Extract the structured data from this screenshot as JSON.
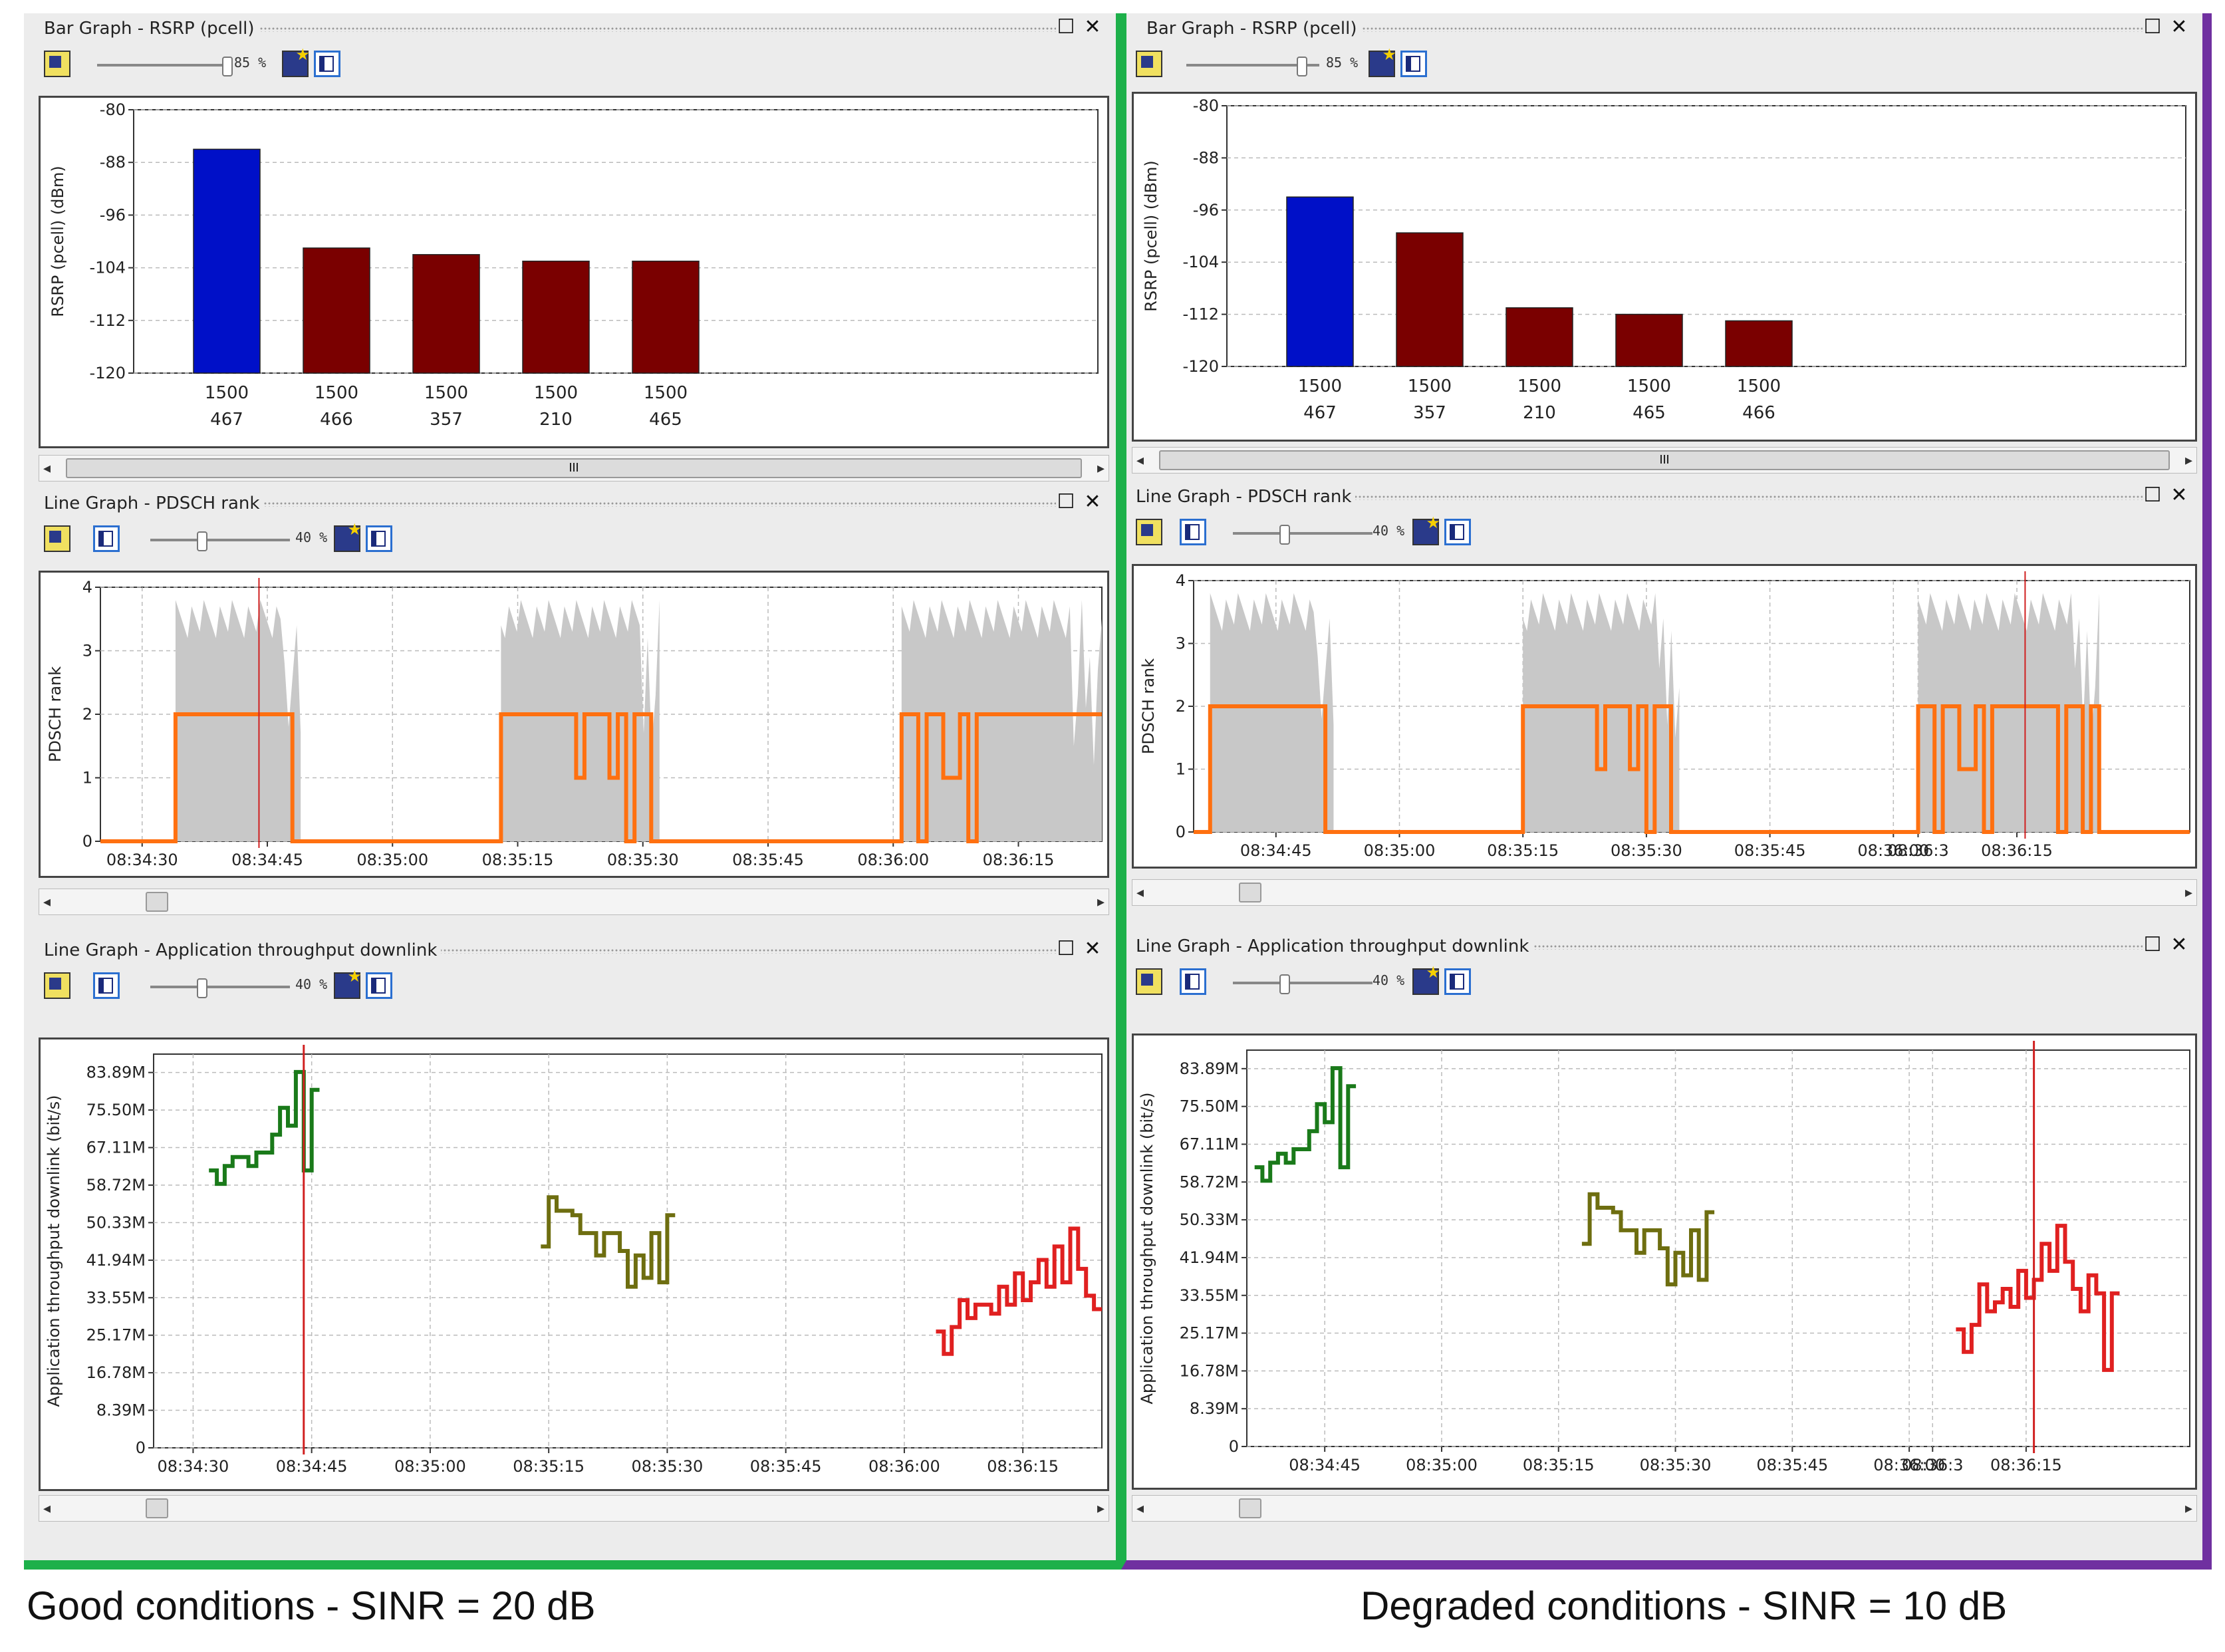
{
  "panels": {
    "bar": {
      "title": "Bar Graph - RSRP (pcell)",
      "zoom": "85 %",
      "zoom_level": 0.85
    },
    "rank": {
      "title": "Line Graph - PDSCH rank",
      "zoom": "40 %",
      "zoom_level": 0.4
    },
    "thr": {
      "title": "Line Graph - Application throughput downlink",
      "zoom": "40 %",
      "zoom_level": 0.4
    }
  },
  "window_controls": {
    "maximize": "☐",
    "close": "✕"
  },
  "scroll": {
    "left": "◂",
    "right": "▸",
    "grip": "III"
  },
  "captions": {
    "left": "Good conditions - SINR = 20 dB",
    "right": "Degraded conditions - SINR = 10 dB"
  },
  "colors": {
    "good_border": "#1db04a",
    "degraded_border": "#7030a0",
    "serving_bar": "#0010c8",
    "neighbor_bar": "#7a0000",
    "rank_line": "#ff7010",
    "rank_fill": "#c8c8c8",
    "cursor": "#d02020"
  },
  "chart_data": [
    {
      "id": "left-bar",
      "type": "bar",
      "ylabel": "RSRP (pcell) (dBm)",
      "ylim": [
        -120,
        -80
      ],
      "yticks": [
        -80,
        -88,
        -96,
        -104,
        -112,
        -120
      ],
      "categories": [
        [
          "1500",
          "467"
        ],
        [
          "1500",
          "466"
        ],
        [
          "1500",
          "357"
        ],
        [
          "1500",
          "210"
        ],
        [
          "1500",
          "465"
        ]
      ],
      "values": [
        -86,
        -101,
        -102,
        -103,
        -103
      ],
      "colors": [
        "#0010c8",
        "#7a0000",
        "#7a0000",
        "#7a0000",
        "#7a0000"
      ]
    },
    {
      "id": "right-bar",
      "type": "bar",
      "ylabel": "RSRP (pcell) (dBm)",
      "ylim": [
        -120,
        -80
      ],
      "yticks": [
        -80,
        -88,
        -96,
        -104,
        -112,
        -120
      ],
      "categories": [
        [
          "1500",
          "467"
        ],
        [
          "1500",
          "357"
        ],
        [
          "1500",
          "210"
        ],
        [
          "1500",
          "465"
        ],
        [
          "1500",
          "466"
        ]
      ],
      "values": [
        -94,
        -99.5,
        -111,
        -112,
        -113
      ],
      "colors": [
        "#0010c8",
        "#7a0000",
        "#7a0000",
        "#7a0000",
        "#7a0000"
      ]
    },
    {
      "id": "left-rank",
      "type": "line",
      "ylabel": "PDSCH rank",
      "ylim": [
        0,
        4
      ],
      "yticks": [
        0,
        1,
        2,
        3,
        4
      ],
      "xlim": [
        "08:34:25",
        "08:36:25"
      ],
      "xticks": [
        "08:34:30",
        "08:34:45",
        "08:35:00",
        "08:35:15",
        "08:35:30",
        "08:35:45",
        "08:36:00",
        "08:36:15"
      ],
      "cursor": "08:34:44",
      "rank_segments": [
        [
          [
            "08:34:25",
            0
          ],
          [
            "08:34:34",
            0
          ],
          [
            "08:34:34",
            2
          ],
          [
            "08:34:48",
            2
          ],
          [
            "08:34:48",
            0
          ],
          [
            "08:35:13",
            0
          ],
          [
            "08:35:13",
            2
          ],
          [
            "08:35:22",
            2
          ],
          [
            "08:35:22",
            1
          ],
          [
            "08:35:23",
            1
          ],
          [
            "08:35:23",
            2
          ],
          [
            "08:35:26",
            2
          ],
          [
            "08:35:26",
            1
          ],
          [
            "08:35:27",
            1
          ],
          [
            "08:35:27",
            2
          ],
          [
            "08:35:28",
            2
          ],
          [
            "08:35:28",
            0
          ],
          [
            "08:35:29",
            0
          ],
          [
            "08:35:29",
            2
          ],
          [
            "08:35:31",
            2
          ],
          [
            "08:35:31",
            0
          ],
          [
            "08:36:01",
            0
          ],
          [
            "08:36:01",
            2
          ],
          [
            "08:36:03",
            2
          ],
          [
            "08:36:03",
            0
          ],
          [
            "08:36:04",
            0
          ],
          [
            "08:36:04",
            2
          ],
          [
            "08:36:06",
            2
          ],
          [
            "08:36:06",
            1
          ],
          [
            "08:36:08",
            1
          ],
          [
            "08:36:08",
            2
          ],
          [
            "08:36:09",
            2
          ],
          [
            "08:36:09",
            0
          ],
          [
            "08:36:10",
            0
          ],
          [
            "08:36:10",
            2
          ],
          [
            "08:36:25",
            2
          ]
        ]
      ],
      "fill_bursts": [
        [
          "08:34:34",
          "08:34:49"
        ],
        [
          "08:35:13",
          "08:35:32"
        ],
        [
          "08:36:01",
          "08:36:25"
        ]
      ],
      "fill_level": 3.8
    },
    {
      "id": "right-rank",
      "type": "line",
      "ylabel": "PDSCH rank",
      "ylim": [
        0,
        4
      ],
      "yticks": [
        0,
        1,
        2,
        3,
        4
      ],
      "xlim": [
        "08:34:35",
        "08:36:36"
      ],
      "xticks": [
        "08:34:45",
        "08:35:00",
        "08:35:15",
        "08:35:30",
        "08:35:45",
        "08:36:00",
        "08:36:15",
        "08:36:3"
      ],
      "cursor": "08:36:16",
      "rank_segments": [
        [
          [
            "08:34:35",
            0
          ],
          [
            "08:34:37",
            0
          ],
          [
            "08:34:37",
            2
          ],
          [
            "08:34:51",
            2
          ],
          [
            "08:34:51",
            0
          ],
          [
            "08:35:15",
            0
          ],
          [
            "08:35:15",
            2
          ],
          [
            "08:35:24",
            2
          ],
          [
            "08:35:24",
            1
          ],
          [
            "08:35:25",
            1
          ],
          [
            "08:35:25",
            2
          ],
          [
            "08:35:28",
            2
          ],
          [
            "08:35:28",
            1
          ],
          [
            "08:35:29",
            1
          ],
          [
            "08:35:29",
            2
          ],
          [
            "08:35:30",
            2
          ],
          [
            "08:35:30",
            0
          ],
          [
            "08:35:31",
            0
          ],
          [
            "08:35:31",
            2
          ],
          [
            "08:35:33",
            2
          ],
          [
            "08:35:33",
            0
          ],
          [
            "08:36:03",
            0
          ],
          [
            "08:36:03",
            2
          ],
          [
            "08:36:05",
            2
          ],
          [
            "08:36:05",
            0
          ],
          [
            "08:36:06",
            0
          ],
          [
            "08:36:06",
            2
          ],
          [
            "08:36:08",
            2
          ],
          [
            "08:36:08",
            1
          ],
          [
            "08:36:10",
            1
          ],
          [
            "08:36:10",
            2
          ],
          [
            "08:36:11",
            2
          ],
          [
            "08:36:11",
            0
          ],
          [
            "08:36:12",
            0
          ],
          [
            "08:36:12",
            2
          ],
          [
            "08:36:20",
            2
          ],
          [
            "08:36:20",
            0
          ],
          [
            "08:36:21",
            0
          ],
          [
            "08:36:21",
            2
          ],
          [
            "08:36:23",
            2
          ],
          [
            "08:36:23",
            0
          ],
          [
            "08:36:24",
            0
          ],
          [
            "08:36:24",
            2
          ],
          [
            "08:36:25",
            2
          ],
          [
            "08:36:25",
            0
          ],
          [
            "08:36:36",
            0
          ]
        ]
      ],
      "fill_bursts": [
        [
          "08:34:37",
          "08:34:52"
        ],
        [
          "08:35:15",
          "08:35:34"
        ],
        [
          "08:36:03",
          "08:36:25"
        ]
      ],
      "fill_level": 3.8
    },
    {
      "id": "left-thr",
      "type": "line",
      "ylabel": "Application throughput downlink (bit/s)",
      "ylim": [
        0,
        88
      ],
      "ytick_values": [
        0,
        8.39,
        16.78,
        25.17,
        33.55,
        41.94,
        50.33,
        58.72,
        67.11,
        75.5,
        83.89
      ],
      "ytick_labels": [
        "0",
        "8.39M",
        "16.78M",
        "25.17M",
        "33.55M",
        "41.94M",
        "50.33M",
        "58.72M",
        "67.11M",
        "75.50M",
        "83.89M"
      ],
      "xlim": [
        "08:34:25",
        "08:36:25"
      ],
      "xticks": [
        "08:34:30",
        "08:34:45",
        "08:35:00",
        "08:35:15",
        "08:35:30",
        "08:35:45",
        "08:36:00",
        "08:36:15"
      ],
      "cursor": "08:34:44",
      "series": [
        {
          "color": "#1a7a1a",
          "points": [
            [
              "08:34:32",
              62
            ],
            [
              "08:34:33",
              59
            ],
            [
              "08:34:34",
              63
            ],
            [
              "08:34:35",
              65
            ],
            [
              "08:34:37",
              63
            ],
            [
              "08:34:38",
              66
            ],
            [
              "08:34:40",
              70
            ],
            [
              "08:34:41",
              76
            ],
            [
              "08:34:42",
              72
            ],
            [
              "08:34:43",
              84
            ],
            [
              "08:34:44",
              62
            ],
            [
              "08:34:45",
              80
            ],
            [
              "08:34:46",
              80
            ]
          ]
        },
        {
          "color": "#6e6e10",
          "points": [
            [
              "08:35:14",
              45
            ],
            [
              "08:35:15",
              56
            ],
            [
              "08:35:16",
              53
            ],
            [
              "08:35:18",
              52
            ],
            [
              "08:35:19",
              48
            ],
            [
              "08:35:21",
              43
            ],
            [
              "08:35:22",
              48
            ],
            [
              "08:35:24",
              44
            ],
            [
              "08:35:25",
              36
            ],
            [
              "08:35:26",
              43
            ],
            [
              "08:35:27",
              38
            ],
            [
              "08:35:28",
              48
            ],
            [
              "08:35:29",
              37
            ],
            [
              "08:35:30",
              52
            ],
            [
              "08:35:31",
              52
            ]
          ]
        },
        {
          "color": "#e02020",
          "points": [
            [
              "08:36:04",
              26
            ],
            [
              "08:36:05",
              21
            ],
            [
              "08:36:06",
              27
            ],
            [
              "08:36:07",
              33
            ],
            [
              "08:36:08",
              29
            ],
            [
              "08:36:09",
              32
            ],
            [
              "08:36:11",
              30
            ],
            [
              "08:36:12",
              36
            ],
            [
              "08:36:13",
              32
            ],
            [
              "08:36:14",
              39
            ],
            [
              "08:36:15",
              33
            ],
            [
              "08:36:16",
              37
            ],
            [
              "08:36:17",
              42
            ],
            [
              "08:36:18",
              36
            ],
            [
              "08:36:19",
              45
            ],
            [
              "08:36:20",
              37
            ],
            [
              "08:36:21",
              49
            ],
            [
              "08:36:22",
              40
            ],
            [
              "08:36:23",
              34
            ],
            [
              "08:36:24",
              31
            ],
            [
              "08:36:25",
              31
            ]
          ]
        }
      ]
    },
    {
      "id": "right-thr",
      "type": "line",
      "ylabel": "Application throughput downlink (bit/s)",
      "ylim": [
        0,
        88
      ],
      "ytick_values": [
        0,
        8.39,
        16.78,
        25.17,
        33.55,
        41.94,
        50.33,
        58.72,
        67.11,
        75.5,
        83.89
      ],
      "ytick_labels": [
        "0",
        "8.39M",
        "16.78M",
        "25.17M",
        "33.55M",
        "41.94M",
        "50.33M",
        "58.72M",
        "67.11M",
        "75.50M",
        "83.89M"
      ],
      "xlim": [
        "08:34:35",
        "08:36:36"
      ],
      "xticks": [
        "08:34:45",
        "08:35:00",
        "08:35:15",
        "08:35:30",
        "08:35:45",
        "08:36:00",
        "08:36:15",
        "08:36:3"
      ],
      "cursor": "08:36:16",
      "series": [
        {
          "color": "#1a7a1a",
          "points": [
            [
              "08:34:36",
              62
            ],
            [
              "08:34:37",
              59
            ],
            [
              "08:34:38",
              63
            ],
            [
              "08:34:39",
              65
            ],
            [
              "08:34:40",
              63
            ],
            [
              "08:34:41",
              66
            ],
            [
              "08:34:43",
              70
            ],
            [
              "08:34:44",
              76
            ],
            [
              "08:34:45",
              72
            ],
            [
              "08:34:46",
              84
            ],
            [
              "08:34:47",
              62
            ],
            [
              "08:34:48",
              80
            ],
            [
              "08:34:49",
              80
            ]
          ]
        },
        {
          "color": "#6e6e10",
          "points": [
            [
              "08:35:18",
              45
            ],
            [
              "08:35:19",
              56
            ],
            [
              "08:35:20",
              53
            ],
            [
              "08:35:22",
              52
            ],
            [
              "08:35:23",
              48
            ],
            [
              "08:35:25",
              43
            ],
            [
              "08:35:26",
              48
            ],
            [
              "08:35:28",
              44
            ],
            [
              "08:35:29",
              36
            ],
            [
              "08:35:30",
              43
            ],
            [
              "08:35:31",
              38
            ],
            [
              "08:35:32",
              48
            ],
            [
              "08:35:33",
              37
            ],
            [
              "08:35:34",
              52
            ],
            [
              "08:35:35",
              52
            ]
          ]
        },
        {
          "color": "#e02020",
          "points": [
            [
              "08:36:06",
              26
            ],
            [
              "08:36:07",
              21
            ],
            [
              "08:36:08",
              27
            ],
            [
              "08:36:09",
              36
            ],
            [
              "08:36:10",
              30
            ],
            [
              "08:36:11",
              32
            ],
            [
              "08:36:12",
              35
            ],
            [
              "08:36:13",
              31
            ],
            [
              "08:36:14",
              39
            ],
            [
              "08:36:15",
              33
            ],
            [
              "08:36:16",
              37
            ],
            [
              "08:36:17",
              45
            ],
            [
              "08:36:18",
              39
            ],
            [
              "08:36:19",
              49
            ],
            [
              "08:36:20",
              41
            ],
            [
              "08:36:21",
              35
            ],
            [
              "08:36:22",
              30
            ],
            [
              "08:36:23",
              38
            ],
            [
              "08:36:24",
              34
            ],
            [
              "08:36:25",
              17
            ],
            [
              "08:36:26",
              34
            ],
            [
              "08:36:27",
              34
            ]
          ]
        }
      ]
    }
  ]
}
